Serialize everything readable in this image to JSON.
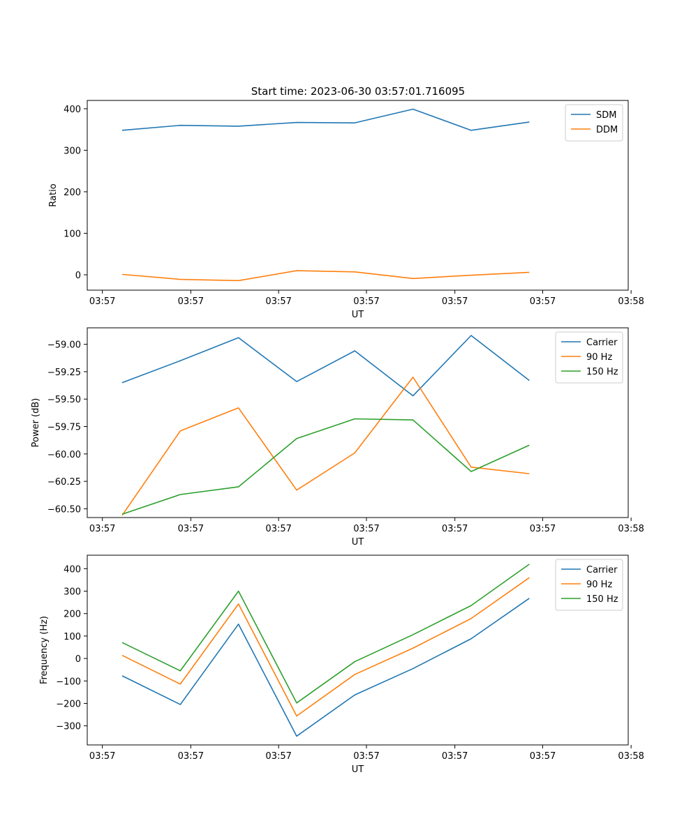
{
  "figure": {
    "title": "Start time: 2023-06-30 03:57:01.716095"
  },
  "chart_data": [
    {
      "type": "line",
      "xlabel": "UT",
      "ylabel": "Ratio",
      "x_tick_labels": [
        "03:57",
        "03:57",
        "03:57",
        "03:57",
        "03:57",
        "03:57",
        "03:58"
      ],
      "xlim": [
        -0.6,
        8.7
      ],
      "ylim": [
        -37,
        420
      ],
      "yticks": [
        0,
        100,
        200,
        300,
        400
      ],
      "ytick_labels": [
        "0",
        "100",
        "200",
        "300",
        "400"
      ],
      "legend_position": "top-right",
      "series": [
        {
          "name": "SDM",
          "color": "#1f77b4",
          "values": [
            348,
            360,
            358,
            367,
            366,
            399,
            348,
            368
          ]
        },
        {
          "name": "DDM",
          "color": "#ff7f0e",
          "values": [
            1,
            -11,
            -14,
            10,
            7,
            -9,
            -1,
            6
          ]
        }
      ]
    },
    {
      "type": "line",
      "xlabel": "UT",
      "ylabel": "Power (dB)",
      "x_tick_labels": [
        "03:57",
        "03:57",
        "03:57",
        "03:57",
        "03:57",
        "03:57",
        "03:58"
      ],
      "xlim": [
        -0.6,
        8.7
      ],
      "ylim": [
        -60.58,
        -58.85
      ],
      "yticks": [
        -60.5,
        -60.25,
        -60.0,
        -59.75,
        -59.5,
        -59.25,
        -59.0
      ],
      "ytick_labels": [
        "−60.50",
        "−60.25",
        "−60.00",
        "−59.75",
        "−59.50",
        "−59.25",
        "−59.00"
      ],
      "legend_position": "top-right",
      "series": [
        {
          "name": "Carrier",
          "color": "#1f77b4",
          "values": [
            -59.35,
            -59.15,
            -58.94,
            -59.34,
            -59.06,
            -59.47,
            -58.92,
            -59.33
          ]
        },
        {
          "name": "90 Hz",
          "color": "#ff7f0e",
          "values": [
            -60.56,
            -59.79,
            -59.58,
            -60.33,
            -59.99,
            -59.3,
            -60.12,
            -60.18
          ]
        },
        {
          "name": "150 Hz",
          "color": "#2ca02c",
          "values": [
            -60.55,
            -60.37,
            -60.3,
            -59.86,
            -59.68,
            -59.69,
            -60.16,
            -59.92
          ]
        }
      ]
    },
    {
      "type": "line",
      "xlabel": "UT",
      "ylabel": "Frequency (Hz)",
      "x_tick_labels": [
        "03:57",
        "03:57",
        "03:57",
        "03:57",
        "03:57",
        "03:57",
        "03:58"
      ],
      "xlim": [
        -0.6,
        8.7
      ],
      "ylim": [
        -385,
        460
      ],
      "yticks": [
        -300,
        -200,
        -100,
        0,
        100,
        200,
        300,
        400
      ],
      "ytick_labels": [
        "−300",
        "−200",
        "−100",
        "0",
        "100",
        "200",
        "300",
        "400"
      ],
      "legend_position": "top-right",
      "series": [
        {
          "name": "Carrier",
          "color": "#1f77b4",
          "values": [
            -77,
            -205,
            153,
            -346,
            -162,
            -45,
            88,
            268
          ]
        },
        {
          "name": "90 Hz",
          "color": "#ff7f0e",
          "values": [
            14,
            -114,
            243,
            -256,
            -71,
            46,
            178,
            360
          ]
        },
        {
          "name": "150 Hz",
          "color": "#2ca02c",
          "values": [
            71,
            -55,
            300,
            -198,
            -14,
            106,
            236,
            420
          ]
        }
      ]
    }
  ]
}
